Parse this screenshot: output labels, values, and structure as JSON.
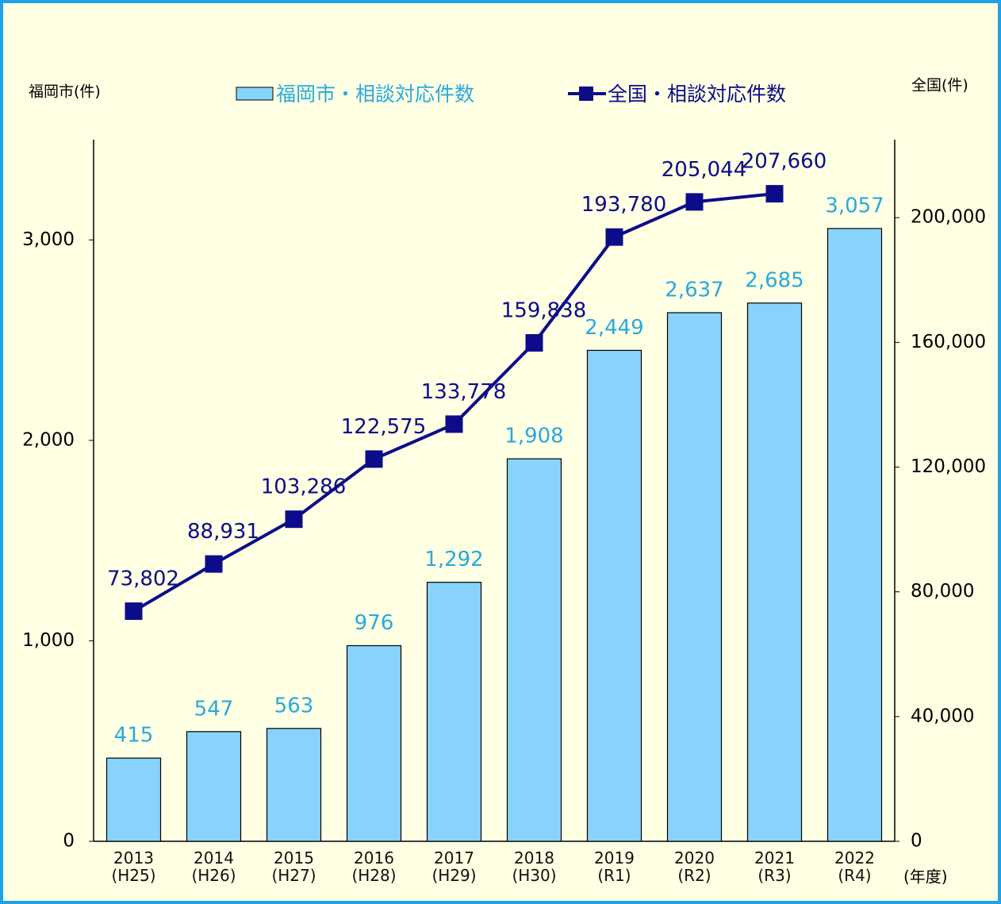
{
  "chart_data": {
    "type": "bar_line",
    "y_label": "福岡市(件)",
    "y2_label": "全国(件)",
    "x_label": "(年度)",
    "categories": [
      "2013\n(H25)",
      "2014\n(H26)",
      "2015\n(H27)",
      "2016\n(H28)",
      "2017\n(H29)",
      "2018\n(H30)",
      "2019\n(R1)",
      "2020\n(R2)",
      "2021\n(R3)",
      "2022\n(R4)"
    ],
    "series": [
      {
        "name": "福岡市・相談対応件数",
        "type": "bar",
        "color": "#87d3fb",
        "label_color": "#29a9e1",
        "values": [
          415,
          547,
          563,
          976,
          1292,
          1908,
          2449,
          2637,
          2685,
          3057
        ],
        "value_labels": [
          "415",
          "547",
          "563",
          "976",
          "1,292",
          "1,908",
          "2,449",
          "2,637",
          "2,685",
          "3,057"
        ]
      },
      {
        "name": "全国・相談対応件数",
        "type": "line",
        "axis": "y2",
        "color": "#0c0c8a",
        "label_color": "#0c0c8a",
        "values": [
          73802,
          88931,
          103286,
          122575,
          133778,
          159838,
          193780,
          205044,
          207660,
          null
        ],
        "value_labels": [
          "73,802",
          "88,931",
          "103,286",
          "122,575",
          "133,778",
          "159,838",
          "193,780",
          "205,044",
          "207,660",
          null
        ]
      }
    ],
    "ylim": [
      0,
      3500
    ],
    "yticks": [
      0,
      {
        "value": 1000,
        "label": "1,000"
      },
      {
        "value": 2000,
        "label": "2,000"
      },
      {
        "value": 3000,
        "label": "3,000"
      }
    ],
    "y2lim": [
      0,
      225000
    ],
    "y2ticks": [
      0,
      {
        "value": 40000,
        "label": "40,000"
      },
      {
        "value": 80000,
        "label": "80,000"
      },
      {
        "value": 120000,
        "label": "120,000"
      },
      {
        "value": 160000,
        "label": "160,000"
      },
      {
        "value": 200000,
        "label": "200,000"
      }
    ],
    "grid": false
  }
}
